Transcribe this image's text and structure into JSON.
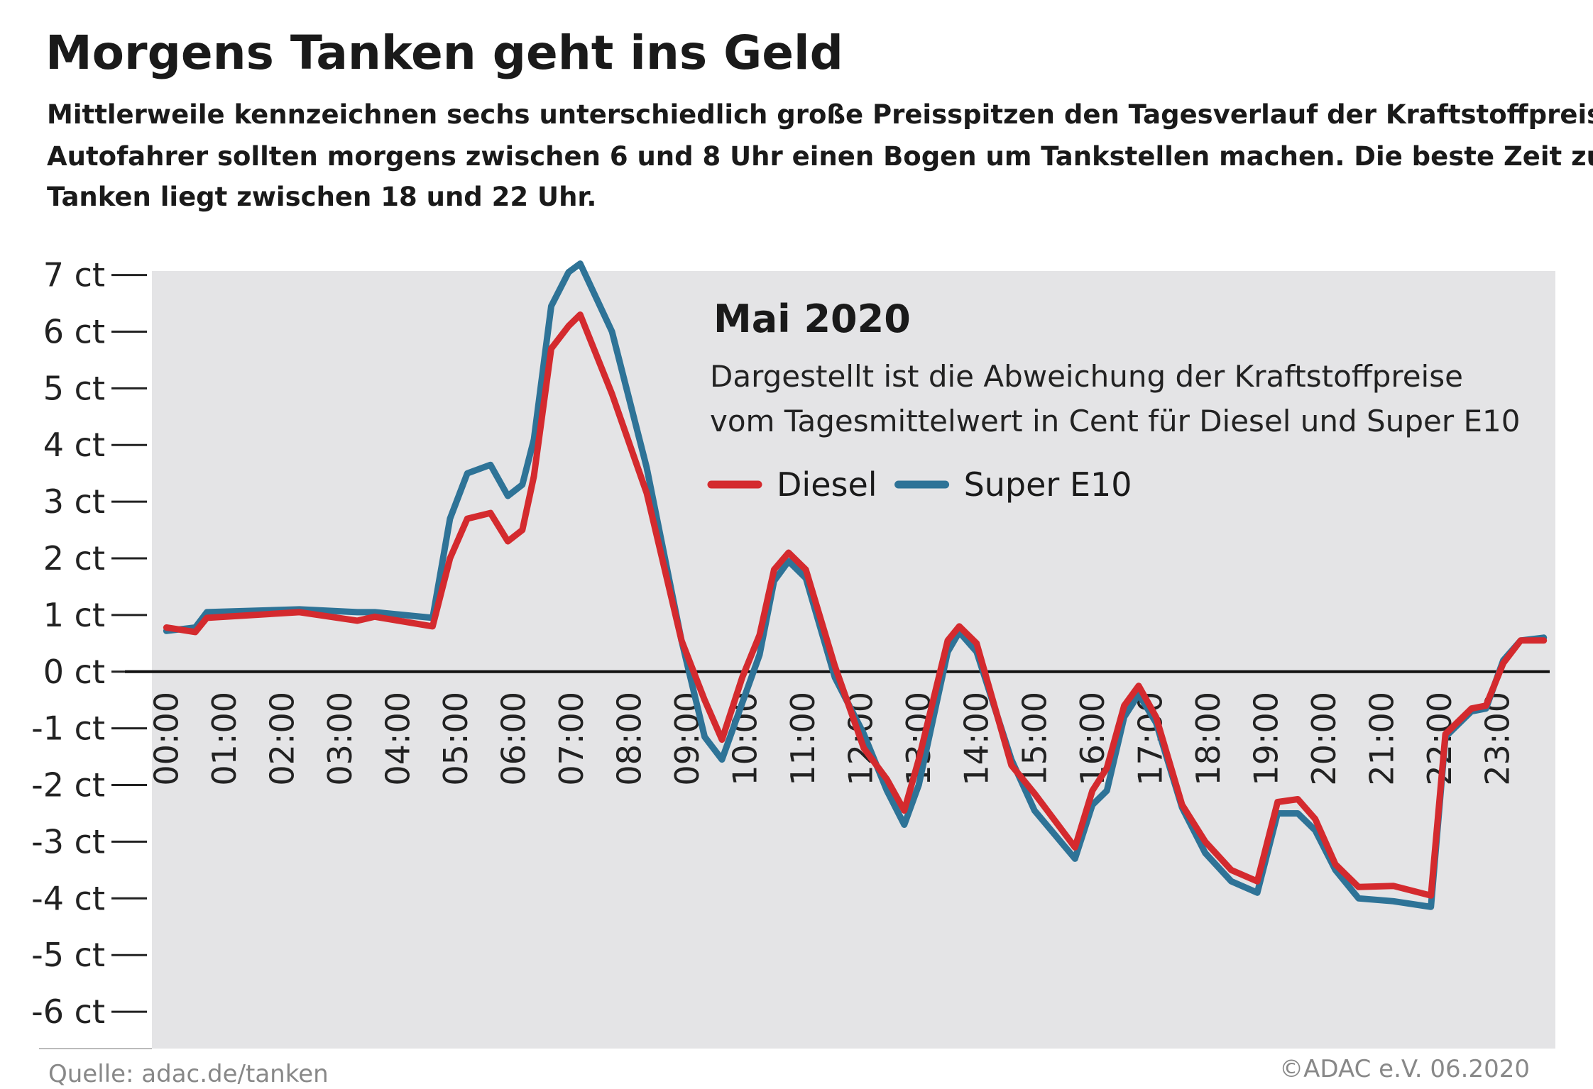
{
  "chart_data": {
    "type": "line",
    "title": "Morgens Tanken geht ins Geld",
    "subtitle": [
      "Mittlerweile kennzeichnen sechs unterschiedlich große Preisspitzen den Tagesverlauf der Kraftstoffpreise.",
      "Autofahrer sollten morgens zwischen 6 und 8 Uhr einen Bogen um Tankstellen machen. Die beste Zeit zum",
      "Tanken liegt zwischen 18 und 22 Uhr."
    ],
    "annotation_title": "Mai 2020",
    "annotation": [
      "Dargestellt ist die Abweichung der Kraftstoffpreise",
      "vom Tagesmittelwert in Cent für Diesel und Super E10"
    ],
    "source": "Quelle: adac.de/tanken",
    "copyright": "©ADAC e.V.  06.2020",
    "x": [
      0,
      0.5,
      0.7,
      2.3,
      3.3,
      3.6,
      4.6,
      4.9,
      5.2,
      5.6,
      5.9,
      6.15,
      6.35,
      6.65,
      6.95,
      7.15,
      7.7,
      8.3,
      8.9,
      9.3,
      9.6,
      9.95,
      10.25,
      10.5,
      10.75,
      11.05,
      11.55,
      12.05,
      12.45,
      12.75,
      13.0,
      13.5,
      13.7,
      14.0,
      14.6,
      15.0,
      15.7,
      16.0,
      16.25,
      16.55,
      16.8,
      17.1,
      17.55,
      17.95,
      18.4,
      18.85,
      19.2,
      19.55,
      19.85,
      20.2,
      20.6,
      21.2,
      21.85,
      22.1,
      22.55,
      22.8,
      23.1,
      23.4,
      23.8
    ],
    "series": [
      {
        "name": "Diesel",
        "color": "#d42a2e",
        "values": [
          0.78,
          0.7,
          0.95,
          1.05,
          0.9,
          0.97,
          0.8,
          2.0,
          2.7,
          2.8,
          2.3,
          2.5,
          3.45,
          5.7,
          6.1,
          6.3,
          4.9,
          3.15,
          0.55,
          -0.5,
          -1.2,
          -0.1,
          0.65,
          1.8,
          2.1,
          1.8,
          0.1,
          -1.35,
          -1.9,
          -2.45,
          -1.55,
          0.55,
          0.8,
          0.5,
          -1.65,
          -2.15,
          -3.1,
          -2.1,
          -1.7,
          -0.6,
          -0.25,
          -0.8,
          -2.35,
          -3.0,
          -3.5,
          -3.7,
          -2.3,
          -2.25,
          -2.6,
          -3.4,
          -3.8,
          -3.78,
          -3.95,
          -1.1,
          -0.65,
          -0.6,
          0.15,
          0.55,
          0.55
        ]
      },
      {
        "name": "Super E10",
        "color": "#2e7397",
        "values": [
          0.72,
          0.78,
          1.05,
          1.1,
          1.05,
          1.05,
          0.95,
          2.7,
          3.5,
          3.65,
          3.1,
          3.3,
          4.1,
          6.45,
          7.05,
          7.2,
          6.0,
          3.6,
          0.55,
          -1.15,
          -1.55,
          -0.55,
          0.3,
          1.6,
          1.95,
          1.65,
          -0.1,
          -1.1,
          -2.1,
          -2.7,
          -2.0,
          0.35,
          0.7,
          0.35,
          -1.55,
          -2.45,
          -3.3,
          -2.35,
          -2.1,
          -0.8,
          -0.4,
          -0.9,
          -2.4,
          -3.2,
          -3.7,
          -3.9,
          -2.5,
          -2.5,
          -2.8,
          -3.5,
          -4.0,
          -4.05,
          -4.15,
          -1.15,
          -0.7,
          -0.65,
          0.2,
          0.55,
          0.6
        ]
      }
    ],
    "xlim": [
      -0.25,
      24
    ],
    "xticks": [
      {
        "value": 0,
        "label": "00:00"
      },
      {
        "value": 1,
        "label": "01:00"
      },
      {
        "value": 2,
        "label": "02:00"
      },
      {
        "value": 3,
        "label": "03:00"
      },
      {
        "value": 4,
        "label": "04:00"
      },
      {
        "value": 5,
        "label": "05:00"
      },
      {
        "value": 6,
        "label": "06:00"
      },
      {
        "value": 7,
        "label": "07:00"
      },
      {
        "value": 8,
        "label": "08:00"
      },
      {
        "value": 9,
        "label": "09:00"
      },
      {
        "value": 10,
        "label": "10:00"
      },
      {
        "value": 11,
        "label": "11:00"
      },
      {
        "value": 12,
        "label": "12:00"
      },
      {
        "value": 13,
        "label": "13:00"
      },
      {
        "value": 14,
        "label": "14:00"
      },
      {
        "value": 15,
        "label": "15:00"
      },
      {
        "value": 16,
        "label": "16:00"
      },
      {
        "value": 17,
        "label": "17:00"
      },
      {
        "value": 18,
        "label": "18:00"
      },
      {
        "value": 19,
        "label": "19:00"
      },
      {
        "value": 20,
        "label": "20:00"
      },
      {
        "value": 21,
        "label": "21:00"
      },
      {
        "value": 22,
        "label": "22:00"
      },
      {
        "value": 23,
        "label": "23:00"
      }
    ],
    "ylim": [
      -6.65,
      7.07
    ],
    "yticks": [
      {
        "value": 7,
        "label": "7 ct"
      },
      {
        "value": 6,
        "label": "6 ct"
      },
      {
        "value": 5,
        "label": "5 ct"
      },
      {
        "value": 4,
        "label": "4 ct"
      },
      {
        "value": 3,
        "label": "3 ct"
      },
      {
        "value": 2,
        "label": "2 ct"
      },
      {
        "value": 1,
        "label": "1 ct"
      },
      {
        "value": 0,
        "label": "0 ct"
      },
      {
        "value": -1,
        "label": "-1 ct"
      },
      {
        "value": -2,
        "label": "-2 ct"
      },
      {
        "value": -3,
        "label": "-3 ct"
      },
      {
        "value": -4,
        "label": "-4 ct"
      },
      {
        "value": -5,
        "label": "-5 ct"
      },
      {
        "value": -6,
        "label": "-6 ct"
      }
    ]
  }
}
